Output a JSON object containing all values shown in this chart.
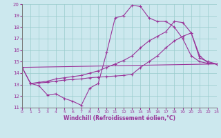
{
  "xlabel": "Windchill (Refroidissement éolien,°C)",
  "bg_color": "#cce8ee",
  "line_color": "#993399",
  "grid_color": "#99cccc",
  "xlim": [
    0,
    23
  ],
  "ylim": [
    11,
    20
  ],
  "xticks": [
    0,
    1,
    2,
    3,
    4,
    5,
    6,
    7,
    8,
    9,
    10,
    11,
    12,
    13,
    14,
    15,
    16,
    17,
    18,
    19,
    20,
    21,
    22,
    23
  ],
  "yticks": [
    11,
    12,
    13,
    14,
    15,
    16,
    17,
    18,
    19,
    20
  ],
  "series1_x": [
    0,
    1,
    2,
    3,
    4,
    5,
    6,
    7,
    8,
    9,
    10,
    11,
    12,
    13,
    14,
    15,
    16,
    17,
    18,
    19,
    20,
    21,
    22,
    23
  ],
  "series1_y": [
    14.5,
    13.1,
    12.9,
    12.1,
    12.2,
    11.8,
    11.55,
    11.2,
    12.7,
    13.1,
    15.8,
    18.8,
    19.0,
    19.9,
    19.8,
    18.8,
    18.5,
    18.5,
    18.0,
    17.0,
    15.5,
    15.0,
    14.85,
    14.8
  ],
  "series2_x": [
    1,
    2,
    3,
    4,
    5,
    6,
    7,
    8,
    9,
    10,
    11,
    12,
    13,
    14,
    15,
    16,
    17,
    18,
    19,
    20,
    21,
    22,
    23
  ],
  "series2_y": [
    13.1,
    13.2,
    13.3,
    13.5,
    13.6,
    13.7,
    13.8,
    14.0,
    14.2,
    14.5,
    14.8,
    15.1,
    15.5,
    16.2,
    16.8,
    17.2,
    17.6,
    18.5,
    18.4,
    17.5,
    15.3,
    15.0,
    14.8
  ],
  "series3_x": [
    0,
    23
  ],
  "series3_y": [
    14.5,
    14.8
  ],
  "series4_x": [
    0,
    1,
    2,
    3,
    4,
    5,
    6,
    7,
    8,
    9,
    10,
    11,
    12,
    13,
    14,
    15,
    16,
    17,
    18,
    19,
    20,
    21,
    22,
    23
  ],
  "series4_y": [
    14.5,
    13.1,
    13.15,
    13.2,
    13.3,
    13.4,
    13.45,
    13.5,
    13.6,
    13.65,
    13.7,
    13.75,
    13.8,
    13.9,
    14.5,
    15.0,
    15.5,
    16.2,
    16.8,
    17.2,
    17.5,
    15.5,
    14.9,
    14.8
  ]
}
